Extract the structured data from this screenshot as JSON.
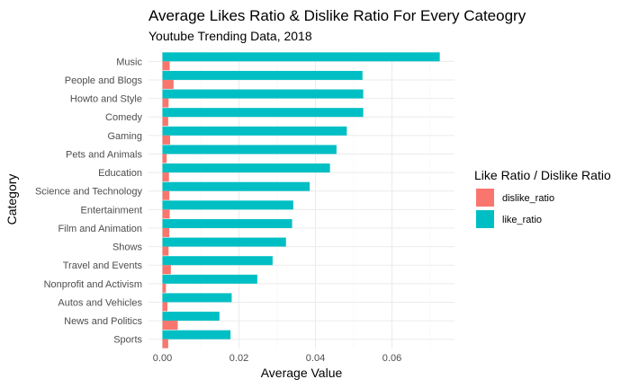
{
  "chart_data": {
    "type": "bar",
    "orientation": "horizontal",
    "title": "Average Likes Ratio & Dislike Ratio For Every Cateogry",
    "subtitle": "Youtube Trending Data, 2018",
    "xlabel": "Average Value",
    "ylabel": "Category",
    "xlim": [
      0,
      0.075
    ],
    "xticks": [
      "0.00",
      "0.02",
      "0.04",
      "0.06"
    ],
    "grid": true,
    "legend": {
      "title": "Like Ratio / Dislike Ratio",
      "position": "right"
    },
    "categories": [
      "Music",
      "People and Blogs",
      "Howto and Style",
      "Comedy",
      "Gaming",
      "Pets and Animals",
      "Education",
      "Science and Technology",
      "Entertainment",
      "Film and Animation",
      "Shows",
      "Travel and Events",
      "Nonprofit and Activism",
      "Autos and Vehicles",
      "News and Politics",
      "Sports"
    ],
    "series": [
      {
        "name": "dislike_ratio",
        "color": "#F8766D",
        "values": [
          0.0019,
          0.0029,
          0.0016,
          0.0015,
          0.002,
          0.0011,
          0.0017,
          0.0018,
          0.0019,
          0.0018,
          0.0016,
          0.0022,
          0.0009,
          0.0013,
          0.004,
          0.0015
        ]
      },
      {
        "name": "like_ratio",
        "color": "#00BFC4",
        "values": [
          0.0725,
          0.0523,
          0.0525,
          0.0525,
          0.0482,
          0.0455,
          0.0438,
          0.0385,
          0.0342,
          0.0339,
          0.0323,
          0.0288,
          0.0248,
          0.0181,
          0.0149,
          0.0178
        ]
      }
    ]
  }
}
